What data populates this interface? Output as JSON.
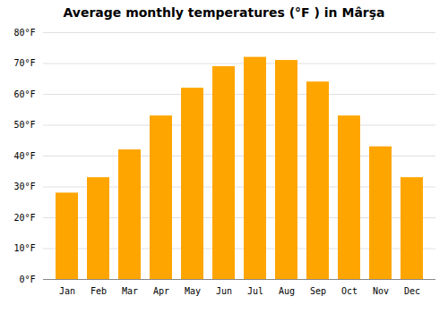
{
  "chart_data": {
    "type": "bar",
    "title": "Average monthly temperatures (°F ) in Mârşa",
    "categories": [
      "Jan",
      "Feb",
      "Mar",
      "Apr",
      "May",
      "Jun",
      "Jul",
      "Aug",
      "Sep",
      "Oct",
      "Nov",
      "Dec"
    ],
    "values": [
      28,
      33,
      42,
      53,
      62,
      69,
      72,
      71,
      64,
      53,
      43,
      33
    ],
    "color": "#FFA500",
    "ylim": [
      0,
      80
    ],
    "yticks": [
      {
        "value": 0,
        "label": "0°F"
      },
      {
        "value": 10,
        "label": "10°F"
      },
      {
        "value": 20,
        "label": "20°F"
      },
      {
        "value": 30,
        "label": "30°F"
      },
      {
        "value": 40,
        "label": "40°F"
      },
      {
        "value": 50,
        "label": "50°F"
      },
      {
        "value": 60,
        "label": "60°F"
      },
      {
        "value": 70,
        "label": "70°F"
      },
      {
        "value": 80,
        "label": "80°F"
      }
    ],
    "grid": true
  }
}
